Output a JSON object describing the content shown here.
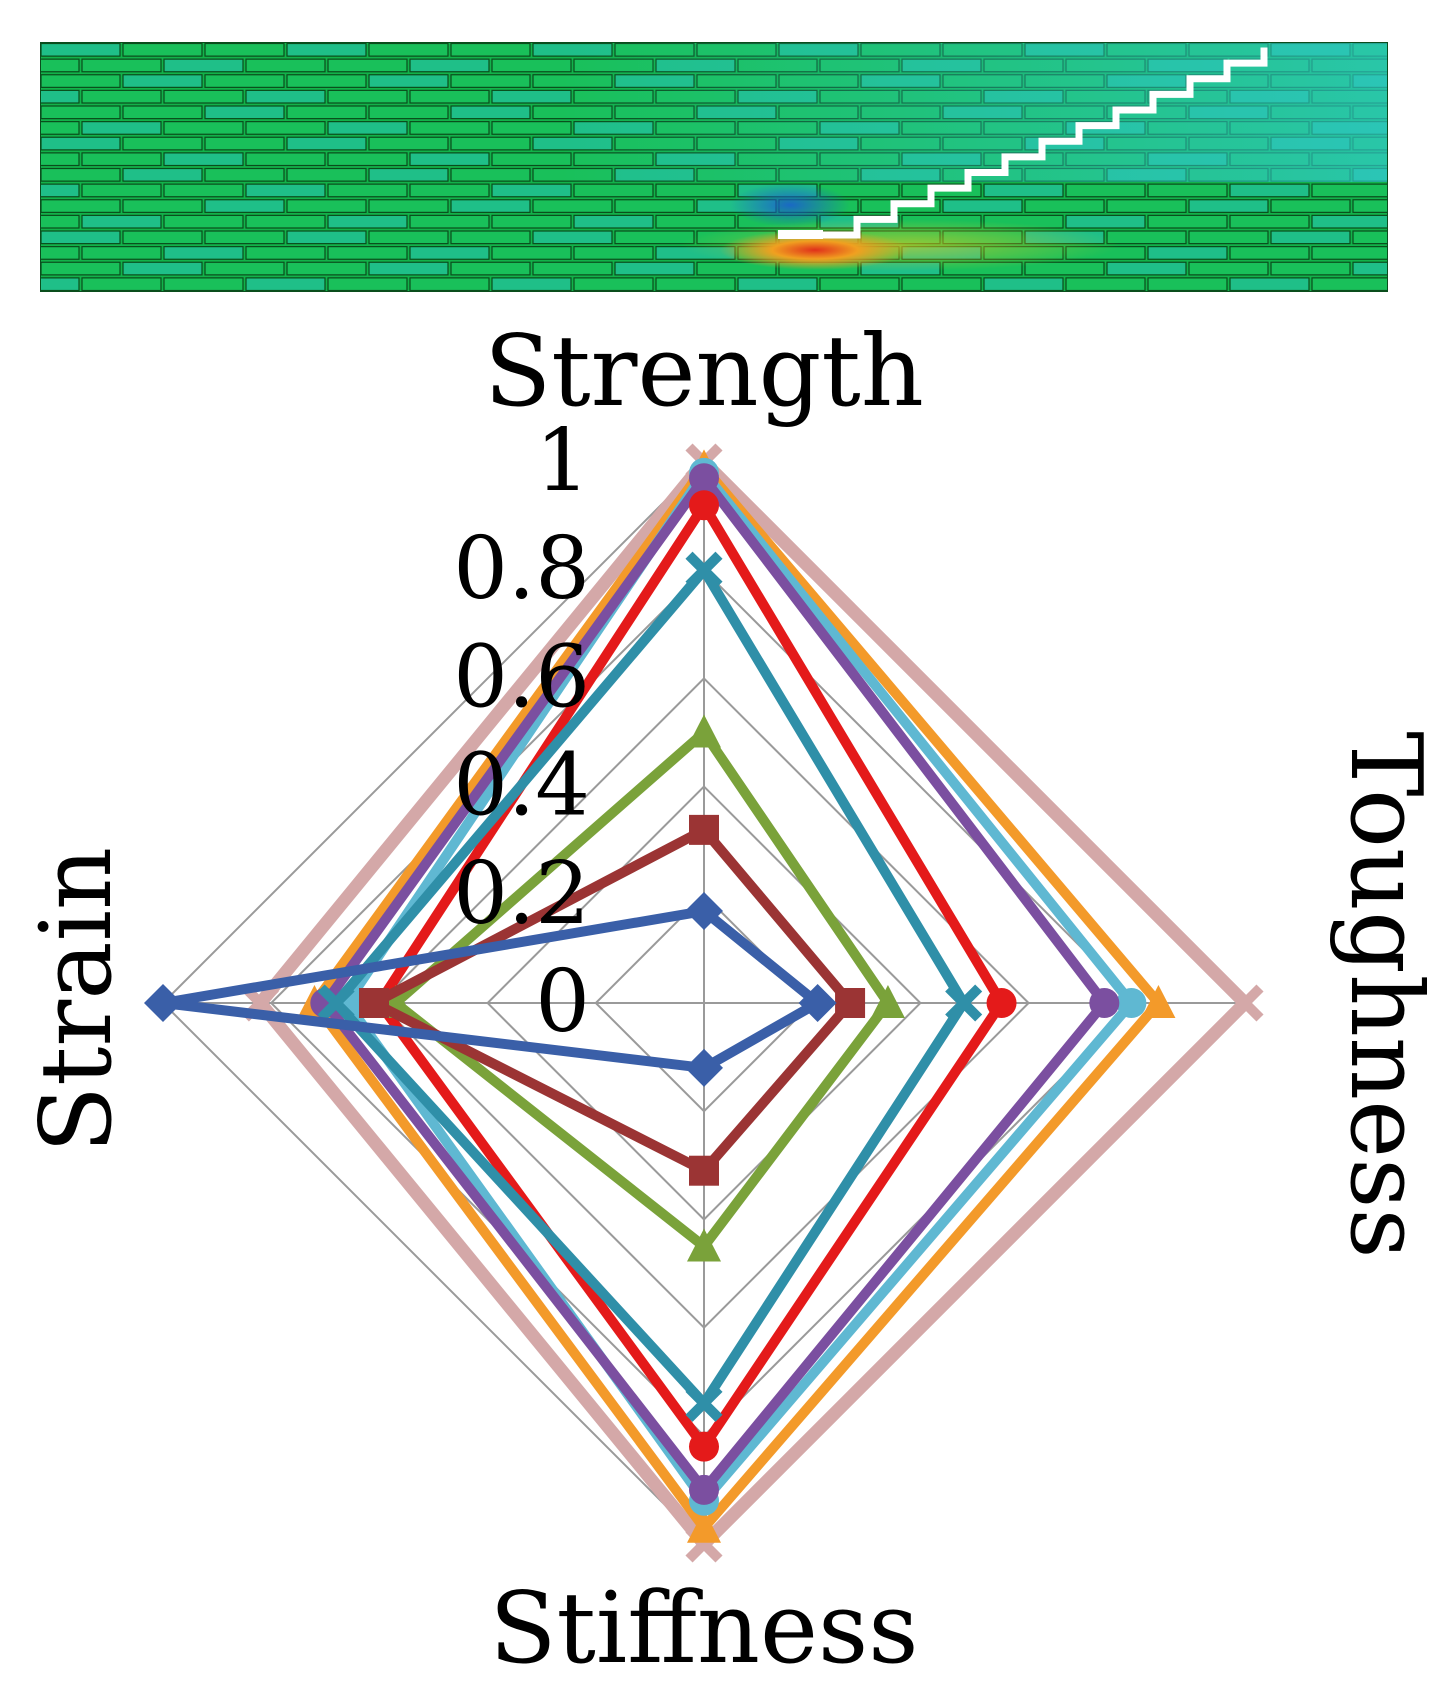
{
  "fem_panel": {
    "description_colors": {
      "background": "#12b24a",
      "row_line": "#0a4d1c",
      "brick_fill_a": "#19c05a",
      "brick_fill_b": "#1fbf88",
      "crack": "#ffffff",
      "stress_high": "#e0301a",
      "stress_mid": "#f0a020",
      "stress_low": "#1a5fd0",
      "cyan_zone": "#30c8c8"
    }
  },
  "chart_data": {
    "type": "radar",
    "axes": [
      "Strength",
      "Toughness",
      "Stiffness",
      "Strain"
    ],
    "tick_labels": [
      "0",
      "0.2",
      "0.4",
      "0.6",
      "0.8",
      "1"
    ],
    "rlim": [
      0,
      1
    ],
    "grid": true,
    "series": [
      {
        "color": "#3a5fa8",
        "marker": "diamond",
        "values": [
          0.17,
          0.21,
          0.12,
          1.0
        ]
      },
      {
        "color": "#9b3434",
        "marker": "square",
        "values": [
          0.32,
          0.27,
          0.31,
          0.61
        ]
      },
      {
        "color": "#7aa23a",
        "marker": "triangle",
        "values": [
          0.5,
          0.34,
          0.45,
          0.57
        ]
      },
      {
        "color": "#2f8fa8",
        "marker": "x",
        "values": [
          0.8,
          0.48,
          0.74,
          0.68
        ]
      },
      {
        "color": "#e41a1a",
        "marker": "circle",
        "values": [
          0.92,
          0.55,
          0.82,
          0.6
        ]
      },
      {
        "color": "#7b4fa0",
        "marker": "circle",
        "values": [
          0.97,
          0.74,
          0.9,
          0.7
        ]
      },
      {
        "color": "#5fb8d2",
        "marker": "circle",
        "values": [
          0.98,
          0.79,
          0.92,
          0.66
        ]
      },
      {
        "color": "#f39a2a",
        "marker": "triangle",
        "values": [
          0.99,
          0.84,
          0.97,
          0.72
        ]
      },
      {
        "color": "#d4a8a8",
        "marker": "x",
        "values": [
          1.0,
          1.0,
          1.0,
          0.82
        ]
      }
    ]
  }
}
